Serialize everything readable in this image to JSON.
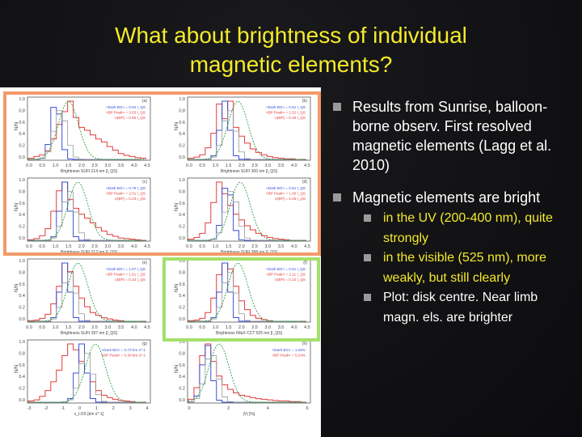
{
  "slide": {
    "title_line1": "What about brightness of individual",
    "title_line2": "magnetic elements?"
  },
  "bullets": [
    {
      "text": "Results from Sunrise, balloon-borne observ. First resolved magnetic elements (Lagg et al. 2010)"
    },
    {
      "text": "Magnetic elements  are bright"
    }
  ],
  "sub_bullets": [
    {
      "text": "in the UV (200-400 nm), quite strongly",
      "color": "#f4ea2a"
    },
    {
      "text": "in the visible (525 nm), more weakly, but still clearly",
      "color": "#f4ea2a"
    },
    {
      "text": "Plot: disk centre. Near limb magn. els. are brighter",
      "color": "#ffffff"
    }
  ],
  "figure": {
    "y_axis_label": "N/N",
    "y_ticks": [
      "1.0",
      "0.8",
      "0.6",
      "0.4",
      "0.2",
      "0.0"
    ],
    "x_ticks": [
      "0.0",
      "0.5",
      "1.0",
      "1.5",
      "2.0",
      "2.5",
      "3.0",
      "3.5",
      "4.0",
      "4.5"
    ],
    "x_ticks_last_row_left": [
      "-3",
      "-2",
      "-1",
      "0",
      "1",
      "2",
      "3",
      "4"
    ],
    "x_ticks_last_row_right": [
      "0",
      "2",
      "4",
      "6"
    ],
    "panel_labels": [
      "(a)",
      "(b)",
      "(c)",
      "(d)",
      "(e)",
      "(f)",
      "(g)",
      "(h)"
    ],
    "x_labels": [
      "Brightness SUFI 214 nm [I_QS]",
      "Brightness SUFI 300 nm [I_QS]",
      "Brightness SUFI 312 nm [I_QS]",
      "Brightness SUFI 388 nm [I_QS]",
      "Brightness SUFI 397 nm [I_QS]",
      "Brightness IMaX CCT 525 nm [I_QS]",
      "v_LOS [km s^-1]",
      "|V| [%]"
    ],
    "legends": [
      [
        "<Dark BG> = 0.92 I_QS",
        "<BP Peak> = 3.03 I_QS",
        "σ(BP) = 0.65 I_QS"
      ],
      [
        "<Dark BG> = 0.81 I_QS",
        "<BP Peak> = 1.52 I_QS",
        "σ(BP) = 0.29 I_QS"
      ],
      [
        "<Dark BG> = 0.79 I_QS",
        "<BP Peak> = 2.01 I_QS",
        "σ(BP) = 0.23 I_QS"
      ],
      [
        "<Dark BG> = 0.81 I_QS",
        "<BP Peak> = 1.40 I_QS",
        "σ(BP) = 0.25 I_QS"
      ],
      [
        "<Dark BG> = 1.07 I_QS",
        "<BP Peak> = 1.61 I_QS",
        "σ(BP) = 0.34 I_QS"
      ],
      [
        "<Dark BG> = 0.81 I_QS",
        "<BP Peak> = 1.11 I_QS",
        "σ(BP) = 0.10 I_QS"
      ],
      [
        "<Dark BG> = 0.73 km s^-1",
        "<BP Peak> = 0.34 km s^-1"
      ],
      [
        "<Dark BG> = 1.46%",
        "<BP Peak> = 5.24%"
      ]
    ]
  }
}
